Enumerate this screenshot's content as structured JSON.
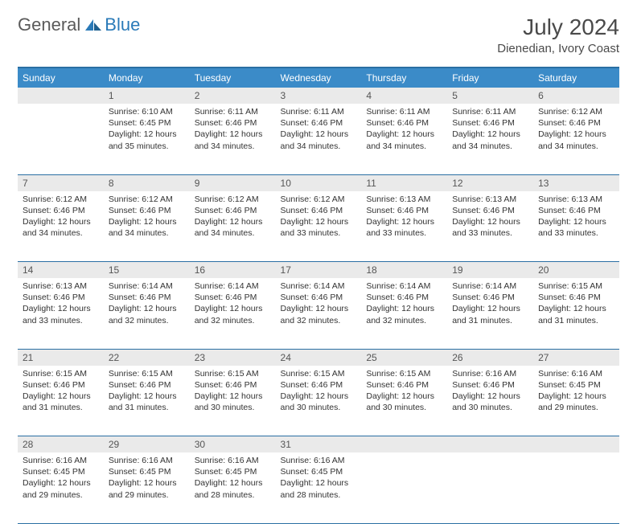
{
  "logo": {
    "general": "General",
    "blue": "Blue"
  },
  "title": "July 2024",
  "location": "Dienedian, Ivory Coast",
  "colors": {
    "header_bg": "#3b8bc8",
    "header_border": "#2a6fa3",
    "daynum_bg": "#eaeaea",
    "text": "#333333",
    "logo_gray": "#5a5a5a",
    "logo_blue": "#2a7ab8"
  },
  "weekdays": [
    "Sunday",
    "Monday",
    "Tuesday",
    "Wednesday",
    "Thursday",
    "Friday",
    "Saturday"
  ],
  "weeks": [
    {
      "nums": [
        "",
        "1",
        "2",
        "3",
        "4",
        "5",
        "6"
      ],
      "cells": [
        null,
        {
          "sunrise": "Sunrise: 6:10 AM",
          "sunset": "Sunset: 6:45 PM",
          "daylight": "Daylight: 12 hours and 35 minutes."
        },
        {
          "sunrise": "Sunrise: 6:11 AM",
          "sunset": "Sunset: 6:46 PM",
          "daylight": "Daylight: 12 hours and 34 minutes."
        },
        {
          "sunrise": "Sunrise: 6:11 AM",
          "sunset": "Sunset: 6:46 PM",
          "daylight": "Daylight: 12 hours and 34 minutes."
        },
        {
          "sunrise": "Sunrise: 6:11 AM",
          "sunset": "Sunset: 6:46 PM",
          "daylight": "Daylight: 12 hours and 34 minutes."
        },
        {
          "sunrise": "Sunrise: 6:11 AM",
          "sunset": "Sunset: 6:46 PM",
          "daylight": "Daylight: 12 hours and 34 minutes."
        },
        {
          "sunrise": "Sunrise: 6:12 AM",
          "sunset": "Sunset: 6:46 PM",
          "daylight": "Daylight: 12 hours and 34 minutes."
        }
      ]
    },
    {
      "nums": [
        "7",
        "8",
        "9",
        "10",
        "11",
        "12",
        "13"
      ],
      "cells": [
        {
          "sunrise": "Sunrise: 6:12 AM",
          "sunset": "Sunset: 6:46 PM",
          "daylight": "Daylight: 12 hours and 34 minutes."
        },
        {
          "sunrise": "Sunrise: 6:12 AM",
          "sunset": "Sunset: 6:46 PM",
          "daylight": "Daylight: 12 hours and 34 minutes."
        },
        {
          "sunrise": "Sunrise: 6:12 AM",
          "sunset": "Sunset: 6:46 PM",
          "daylight": "Daylight: 12 hours and 34 minutes."
        },
        {
          "sunrise": "Sunrise: 6:12 AM",
          "sunset": "Sunset: 6:46 PM",
          "daylight": "Daylight: 12 hours and 33 minutes."
        },
        {
          "sunrise": "Sunrise: 6:13 AM",
          "sunset": "Sunset: 6:46 PM",
          "daylight": "Daylight: 12 hours and 33 minutes."
        },
        {
          "sunrise": "Sunrise: 6:13 AM",
          "sunset": "Sunset: 6:46 PM",
          "daylight": "Daylight: 12 hours and 33 minutes."
        },
        {
          "sunrise": "Sunrise: 6:13 AM",
          "sunset": "Sunset: 6:46 PM",
          "daylight": "Daylight: 12 hours and 33 minutes."
        }
      ]
    },
    {
      "nums": [
        "14",
        "15",
        "16",
        "17",
        "18",
        "19",
        "20"
      ],
      "cells": [
        {
          "sunrise": "Sunrise: 6:13 AM",
          "sunset": "Sunset: 6:46 PM",
          "daylight": "Daylight: 12 hours and 33 minutes."
        },
        {
          "sunrise": "Sunrise: 6:14 AM",
          "sunset": "Sunset: 6:46 PM",
          "daylight": "Daylight: 12 hours and 32 minutes."
        },
        {
          "sunrise": "Sunrise: 6:14 AM",
          "sunset": "Sunset: 6:46 PM",
          "daylight": "Daylight: 12 hours and 32 minutes."
        },
        {
          "sunrise": "Sunrise: 6:14 AM",
          "sunset": "Sunset: 6:46 PM",
          "daylight": "Daylight: 12 hours and 32 minutes."
        },
        {
          "sunrise": "Sunrise: 6:14 AM",
          "sunset": "Sunset: 6:46 PM",
          "daylight": "Daylight: 12 hours and 32 minutes."
        },
        {
          "sunrise": "Sunrise: 6:14 AM",
          "sunset": "Sunset: 6:46 PM",
          "daylight": "Daylight: 12 hours and 31 minutes."
        },
        {
          "sunrise": "Sunrise: 6:15 AM",
          "sunset": "Sunset: 6:46 PM",
          "daylight": "Daylight: 12 hours and 31 minutes."
        }
      ]
    },
    {
      "nums": [
        "21",
        "22",
        "23",
        "24",
        "25",
        "26",
        "27"
      ],
      "cells": [
        {
          "sunrise": "Sunrise: 6:15 AM",
          "sunset": "Sunset: 6:46 PM",
          "daylight": "Daylight: 12 hours and 31 minutes."
        },
        {
          "sunrise": "Sunrise: 6:15 AM",
          "sunset": "Sunset: 6:46 PM",
          "daylight": "Daylight: 12 hours and 31 minutes."
        },
        {
          "sunrise": "Sunrise: 6:15 AM",
          "sunset": "Sunset: 6:46 PM",
          "daylight": "Daylight: 12 hours and 30 minutes."
        },
        {
          "sunrise": "Sunrise: 6:15 AM",
          "sunset": "Sunset: 6:46 PM",
          "daylight": "Daylight: 12 hours and 30 minutes."
        },
        {
          "sunrise": "Sunrise: 6:15 AM",
          "sunset": "Sunset: 6:46 PM",
          "daylight": "Daylight: 12 hours and 30 minutes."
        },
        {
          "sunrise": "Sunrise: 6:16 AM",
          "sunset": "Sunset: 6:46 PM",
          "daylight": "Daylight: 12 hours and 30 minutes."
        },
        {
          "sunrise": "Sunrise: 6:16 AM",
          "sunset": "Sunset: 6:45 PM",
          "daylight": "Daylight: 12 hours and 29 minutes."
        }
      ]
    },
    {
      "nums": [
        "28",
        "29",
        "30",
        "31",
        "",
        "",
        ""
      ],
      "cells": [
        {
          "sunrise": "Sunrise: 6:16 AM",
          "sunset": "Sunset: 6:45 PM",
          "daylight": "Daylight: 12 hours and 29 minutes."
        },
        {
          "sunrise": "Sunrise: 6:16 AM",
          "sunset": "Sunset: 6:45 PM",
          "daylight": "Daylight: 12 hours and 29 minutes."
        },
        {
          "sunrise": "Sunrise: 6:16 AM",
          "sunset": "Sunset: 6:45 PM",
          "daylight": "Daylight: 12 hours and 28 minutes."
        },
        {
          "sunrise": "Sunrise: 6:16 AM",
          "sunset": "Sunset: 6:45 PM",
          "daylight": "Daylight: 12 hours and 28 minutes."
        },
        null,
        null,
        null
      ]
    }
  ]
}
